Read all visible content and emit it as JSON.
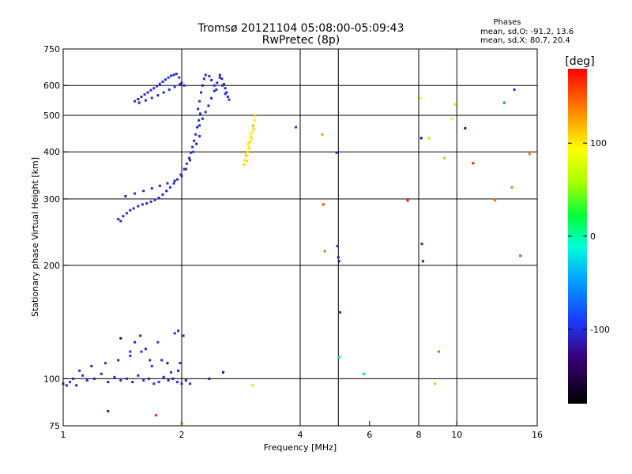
{
  "chart_data": {
    "type": "scatter",
    "title": "Tromsø 20121104 05:08:00-05:09:43",
    "subtitle": "RwPretec (8p)",
    "xlabel": "Frequency [MHz]",
    "ylabel": "Stationary phase Virtual Height [km]",
    "x_scale": "log",
    "y_scale": "log",
    "xlim": [
      1,
      16
    ],
    "ylim": [
      75,
      750
    ],
    "x_ticks": [
      1,
      2,
      4,
      6,
      8,
      10,
      16
    ],
    "x_tick_labels": [
      "1",
      "2",
      "4",
      "6",
      "8",
      "10",
      "16"
    ],
    "x_gridlines": [
      2,
      4,
      5,
      8,
      10
    ],
    "y_ticks": [
      75,
      100,
      200,
      300,
      400,
      500,
      600,
      750
    ],
    "y_tick_labels": [
      "75",
      "100",
      "200",
      "300",
      "400",
      "500",
      "600",
      "750"
    ],
    "y_gridlines": [
      100,
      200,
      300,
      400,
      500,
      600
    ],
    "legend": {
      "title": "Phases",
      "line1": "mean, sd,O: -91.2, 13.6",
      "line2": "mean, sd,X:  80.7, 20.4"
    },
    "colorbar": {
      "title": "[deg]",
      "range": [
        -180,
        180
      ],
      "ticks": [
        100,
        0,
        -100
      ],
      "tick_labels": [
        "100",
        "0",
        "-100"
      ]
    },
    "series": [
      {
        "x": [
          1.52,
          1.55,
          1.58,
          1.61,
          1.64,
          1.67,
          1.7,
          1.73,
          1.76,
          1.79,
          1.82,
          1.85,
          1.88,
          1.91,
          1.94,
          1.97,
          2.0,
          2.03,
          1.56,
          1.62,
          1.68,
          1.74,
          1.8,
          1.86,
          1.92,
          1.98
        ],
        "y": [
          545,
          552,
          560,
          568,
          575,
          583,
          590,
          598,
          606,
          614,
          622,
          630,
          637,
          640,
          644,
          630,
          610,
          600,
          540,
          548,
          556,
          565,
          575,
          585,
          595,
          605
        ],
        "phase": [
          -100,
          -110,
          -105,
          -98,
          -112,
          -100,
          -95,
          -108,
          -102,
          -110,
          -100,
          -96,
          -104,
          -110,
          -100,
          -92,
          -108,
          -100,
          -115,
          -102,
          -98,
          -106,
          -110,
          -100,
          -95,
          -104
        ]
      },
      {
        "x": [
          1.38,
          1.4,
          1.42,
          1.45,
          1.48,
          1.51,
          1.55,
          1.59,
          1.63,
          1.67,
          1.71,
          1.75,
          1.79,
          1.83,
          1.87,
          1.91,
          1.95,
          1.99,
          2.03,
          2.06,
          2.09,
          2.11,
          2.13,
          2.15,
          2.17,
          2.19,
          2.21,
          2.23,
          1.44,
          1.52,
          1.6,
          1.68,
          1.76,
          1.84,
          1.92,
          2.0,
          2.05,
          2.1,
          2.14,
          2.18,
          2.22
        ],
        "y": [
          265,
          262,
          270,
          275,
          280,
          283,
          287,
          290,
          292,
          295,
          298,
          302,
          308,
          315,
          322,
          330,
          338,
          348,
          360,
          372,
          385,
          398,
          412,
          428,
          445,
          465,
          485,
          505,
          305,
          310,
          315,
          320,
          325,
          330,
          335,
          345,
          360,
          380,
          400,
          420,
          440
        ],
        "phase": [
          -100,
          -108,
          -102,
          -96,
          -110,
          -100,
          -104,
          -98,
          -112,
          -100,
          -95,
          -106,
          -102,
          -110,
          -100,
          -96,
          -104,
          -108,
          -100,
          -94,
          -110,
          -102,
          -98,
          -106,
          -100,
          -112,
          -96,
          -104,
          -110,
          -100,
          -102,
          -96,
          -108,
          -100,
          -104,
          -98,
          -110,
          -100,
          -96,
          -106,
          -102
        ]
      },
      {
        "x": [
          2.2,
          2.22,
          2.24,
          2.26,
          2.28,
          2.3,
          2.35,
          2.38,
          2.42,
          2.45,
          2.5,
          2.53,
          2.56,
          2.58,
          2.6,
          2.62,
          2.64,
          2.22,
          2.26,
          2.3,
          2.34,
          2.38,
          2.42,
          2.46,
          2.5,
          2.54,
          2.58
        ],
        "y": [
          520,
          545,
          575,
          600,
          625,
          640,
          635,
          620,
          600,
          585,
          640,
          625,
          605,
          590,
          575,
          560,
          550,
          470,
          490,
          510,
          530,
          555,
          580,
          610,
          630,
          600,
          570
        ],
        "phase": [
          -100,
          -96,
          -106,
          -110,
          -100,
          -102,
          -92,
          -108,
          -100,
          -96,
          -104,
          -110,
          -100,
          -98,
          -106,
          -102,
          -95,
          -100,
          -108,
          -96,
          -104,
          -110,
          -100,
          -98,
          -106,
          -102,
          -94
        ]
      },
      {
        "x": [
          2.88,
          2.9,
          2.92,
          2.94,
          2.96,
          2.98,
          3.0,
          3.02,
          3.04,
          3.06,
          2.91,
          2.95,
          2.99,
          3.03,
          2.93,
          2.97,
          3.01,
          3.05,
          3.07
        ],
        "y": [
          370,
          380,
          390,
          400,
          412,
          425,
          438,
          452,
          468,
          485,
          395,
          420,
          445,
          470,
          378,
          408,
          432,
          460,
          500
        ],
        "phase": [
          110,
          105,
          112,
          100,
          98,
          108,
          104,
          96,
          110,
          102,
          100,
          106,
          98,
          112,
          104,
          100,
          96,
          108,
          115
        ]
      },
      {
        "x": [
          1.0,
          1.02,
          1.04,
          1.06,
          1.08,
          1.12,
          1.15,
          1.2,
          1.25,
          1.3,
          1.35,
          1.4,
          1.45,
          1.5,
          1.55,
          1.6,
          1.65,
          1.7,
          1.75,
          1.8,
          1.85,
          1.9,
          1.95,
          2.0,
          2.05,
          1.1,
          1.18,
          1.28,
          1.38,
          1.48,
          1.58,
          1.68,
          1.78,
          1.88,
          1.98,
          1.52,
          1.57,
          1.62,
          1.48,
          1.66,
          1.92,
          1.96,
          2.02,
          1.74,
          2.35,
          2.55,
          1.4,
          1.84,
          1.96,
          2.1,
          1.3
        ],
        "y": [
          97,
          96,
          98,
          100,
          96,
          102,
          99,
          100,
          103,
          98,
          101,
          99,
          100,
          98,
          102,
          99,
          100,
          97,
          98,
          101,
          99,
          100,
          98,
          97,
          99,
          105,
          108,
          110,
          112,
          115,
          118,
          108,
          112,
          104,
          110,
          125,
          130,
          120,
          118,
          112,
          132,
          134,
          130,
          125,
          100,
          104,
          128,
          110,
          105,
          97,
          82
        ],
        "phase": [
          -100,
          -108,
          -96,
          -104,
          -110,
          -100,
          -98,
          -106,
          -102,
          -110,
          -100,
          -96,
          -104,
          -108,
          -100,
          -94,
          -110,
          -102,
          -98,
          -106,
          -100,
          -112,
          -96,
          -104,
          -110,
          -100,
          -102,
          -96,
          -108,
          -100,
          -104,
          -98,
          -110,
          -100,
          -96,
          -106,
          -102,
          -110,
          -100,
          -96,
          -104,
          -108,
          -100,
          -94,
          -110,
          -135,
          -140,
          -130,
          -120,
          -100,
          -110
        ]
      },
      {
        "x": [
          3.9,
          4.55,
          4.58,
          4.62,
          4.95,
          4.97,
          5.0,
          5.02,
          5.05,
          5.8,
          7.5,
          8.1,
          8.12,
          8.15,
          8.2,
          8.5,
          9.0,
          9.3,
          9.7,
          9.9,
          10.5,
          11.0,
          12.5,
          13.2,
          13.8,
          14.0,
          14.5,
          15.3,
          2.0,
          1.72,
          3.03,
          5.03,
          5.8,
          8.8
        ],
        "y": [
          465,
          445,
          290,
          218,
          398,
          225,
          210,
          205,
          150,
          103,
          297,
          555,
          435,
          228,
          205,
          435,
          118,
          385,
          490,
          535,
          462,
          373,
          298,
          540,
          322,
          585,
          212,
          395,
          76,
          80,
          96,
          114,
          103,
          97
        ],
        "phase": [
          -100,
          130,
          160,
          140,
          -100,
          -100,
          -110,
          -120,
          -100,
          -20,
          170,
          90,
          -140,
          -100,
          -120,
          110,
          150,
          120,
          100,
          70,
          -130,
          170,
          150,
          -60,
          140,
          -100,
          160,
          140,
          130,
          170,
          110,
          -20,
          -20,
          120
        ]
      }
    ]
  }
}
